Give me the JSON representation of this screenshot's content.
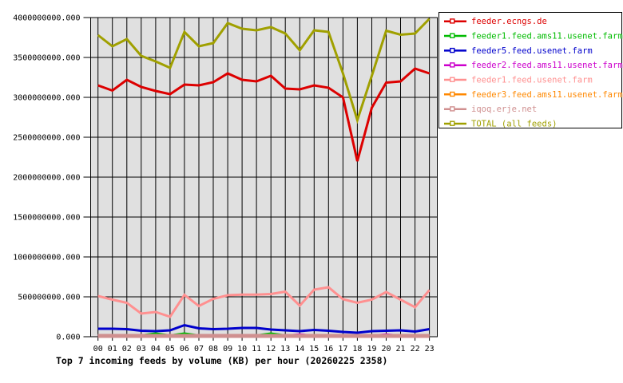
{
  "title": "Top 7 incoming feeds by volume (KB) per hour (20260225 2358)",
  "chart_data": {
    "type": "line",
    "x": [
      "00",
      "01",
      "02",
      "03",
      "04",
      "05",
      "06",
      "07",
      "08",
      "09",
      "10",
      "11",
      "12",
      "13",
      "14",
      "15",
      "16",
      "17",
      "18",
      "19",
      "20",
      "21",
      "22",
      "23"
    ],
    "xlabel": "",
    "ylabel": "",
    "ylim": [
      0,
      4000000000
    ],
    "ytick_step": 500000000,
    "ytick_labels": [
      "0.000",
      "500000000.000",
      "1000000000.000",
      "1500000000.000",
      "2000000000.000",
      "2500000000.000",
      "3000000000.000",
      "3500000000.000",
      "4000000000.000"
    ],
    "grid": true,
    "plot_bg": "#e0e0e0",
    "grid_color": "#000000",
    "legend_position": "outside-right",
    "series": [
      {
        "name": "feeder.ecngs.de",
        "color": "#dd0000",
        "values": [
          3150000000,
          3085000000,
          3220000000,
          3130000000,
          3080000000,
          3040000000,
          3160000000,
          3150000000,
          3190000000,
          3300000000,
          3220000000,
          3200000000,
          3270000000,
          3110000000,
          3100000000,
          3150000000,
          3120000000,
          3000000000,
          2200000000,
          2870000000,
          3185000000,
          3200000000,
          3360000000,
          3300000000
        ]
      },
      {
        "name": "feeder1.feed.ams11.usenet.farm",
        "color": "#00bb00",
        "values": [
          15000000,
          15000000,
          15000000,
          15000000,
          40000000,
          15000000,
          40000000,
          15000000,
          15000000,
          15000000,
          15000000,
          15000000,
          40000000,
          15000000,
          15000000,
          15000000,
          15000000,
          15000000,
          15000000,
          15000000,
          15000000,
          15000000,
          15000000,
          15000000
        ]
      },
      {
        "name": "feeder5.feed.usenet.farm",
        "color": "#0000cc",
        "values": [
          100000000,
          100000000,
          95000000,
          75000000,
          70000000,
          80000000,
          145000000,
          105000000,
          95000000,
          100000000,
          110000000,
          110000000,
          90000000,
          80000000,
          70000000,
          85000000,
          75000000,
          60000000,
          50000000,
          70000000,
          75000000,
          80000000,
          65000000,
          95000000
        ]
      },
      {
        "name": "feeder2.feed.ams11.usenet.farm",
        "color": "#cc00cc",
        "values": [
          12000000,
          12000000,
          12000000,
          12000000,
          12000000,
          12000000,
          12000000,
          12000000,
          12000000,
          12000000,
          12000000,
          12000000,
          12000000,
          12000000,
          28000000,
          12000000,
          12000000,
          12000000,
          12000000,
          12000000,
          28000000,
          12000000,
          12000000,
          12000000
        ]
      },
      {
        "name": "feeder1.feed.usenet.farm",
        "color": "#ff9090",
        "values": [
          510000000,
          465000000,
          425000000,
          290000000,
          310000000,
          250000000,
          525000000,
          385000000,
          475000000,
          520000000,
          528000000,
          528000000,
          535000000,
          565000000,
          390000000,
          590000000,
          620000000,
          470000000,
          425000000,
          465000000,
          560000000,
          465000000,
          370000000,
          585000000
        ]
      },
      {
        "name": "feeder3.feed.ams11.usenet.farm",
        "color": "#ff8800",
        "values": [
          8000000,
          8000000,
          8000000,
          8000000,
          8000000,
          8000000,
          8000000,
          8000000,
          8000000,
          8000000,
          8000000,
          8000000,
          8000000,
          8000000,
          8000000,
          8000000,
          8000000,
          8000000,
          8000000,
          8000000,
          8000000,
          8000000,
          8000000,
          8000000
        ]
      },
      {
        "name": "iqoq.erje.net",
        "color": "#d09090",
        "values": [
          10000000,
          10000000,
          10000000,
          10000000,
          10000000,
          10000000,
          10000000,
          10000000,
          10000000,
          10000000,
          10000000,
          10000000,
          10000000,
          10000000,
          10000000,
          10000000,
          10000000,
          10000000,
          10000000,
          10000000,
          10000000,
          10000000,
          10000000,
          10000000
        ]
      },
      {
        "name": "TOTAL (all feeds)",
        "color": "#a0a000",
        "values": [
          3780000000,
          3640000000,
          3730000000,
          3520000000,
          3450000000,
          3370000000,
          3820000000,
          3640000000,
          3680000000,
          3930000000,
          3860000000,
          3840000000,
          3880000000,
          3800000000,
          3590000000,
          3840000000,
          3820000000,
          3300000000,
          2715000000,
          3270000000,
          3835000000,
          3785000000,
          3800000000,
          3985000000
        ]
      }
    ]
  }
}
